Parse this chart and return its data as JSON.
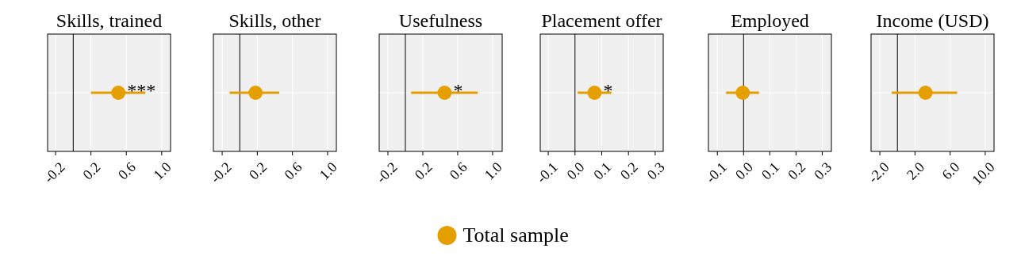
{
  "chart_data": [
    {
      "type": "scatter",
      "orientation": "horizontal",
      "title": "Skills, trained",
      "categories": [
        null
      ],
      "xlim": [
        -0.29,
        1.1
      ],
      "xticks": [
        -0.2,
        0.2,
        0.6,
        {
          "value": 1,
          "label": "1.0"
        }
      ],
      "grid": true,
      "marker": "circle",
      "legend": "bottom",
      "ref_lines": [
        {
          "axis": "x",
          "value": 0,
          "color": "#000000"
        }
      ],
      "annotations": [
        {
          "text": "***",
          "x": 0.51
        }
      ],
      "series": [
        {
          "name": "Total sample",
          "color": "#e69f00",
          "values": [
            0.51
          ],
          "errors": [
            [
              0.2,
              0.815
            ]
          ]
        }
      ]
    },
    {
      "type": "scatter",
      "orientation": "horizontal",
      "title": "Skills, other",
      "categories": [
        null
      ],
      "xlim": [
        -0.3,
        1.1
      ],
      "xticks": [
        -0.2,
        0.2,
        0.6,
        {
          "value": 1,
          "label": "1.0"
        }
      ],
      "grid": true,
      "marker": "circle",
      "ref_lines": [
        {
          "axis": "x",
          "value": 0,
          "color": "#000000"
        }
      ],
      "series": [
        {
          "color": "#e69f00",
          "values": [
            0.18
          ],
          "errors": [
            [
              -0.115,
              0.45
            ]
          ]
        }
      ]
    },
    {
      "type": "scatter",
      "orientation": "horizontal",
      "title": "Usefulness",
      "categories": [
        null
      ],
      "xlim": [
        -0.3,
        1.11
      ],
      "xticks": [
        -0.2,
        0.2,
        0.6,
        {
          "value": 1,
          "label": "1.0"
        }
      ],
      "grid": true,
      "marker": "circle",
      "ref_lines": [
        {
          "axis": "x",
          "value": 0,
          "color": "#000000"
        }
      ],
      "annotations": [
        {
          "text": "*",
          "x": 0.45
        }
      ],
      "series": [
        {
          "color": "#e69f00",
          "values": [
            0.45
          ],
          "errors": [
            [
              0.065,
              0.83
            ]
          ]
        }
      ]
    },
    {
      "type": "scatter",
      "orientation": "horizontal",
      "title": "Placement offer",
      "categories": [
        null
      ],
      "xlim": [
        -0.13,
        0.33
      ],
      "xticks": [
        -0.1,
        {
          "value": 0,
          "label": "0.0"
        },
        0.1,
        0.2,
        0.3
      ],
      "grid": true,
      "marker": "circle",
      "ref_lines": [
        {
          "axis": "x",
          "value": 0,
          "color": "#000000"
        }
      ],
      "annotations": [
        {
          "text": "*",
          "x": 0.073
        }
      ],
      "series": [
        {
          "color": "#e69f00",
          "values": [
            0.073
          ],
          "errors": [
            [
              0.01,
              0.136
            ]
          ]
        }
      ]
    },
    {
      "type": "scatter",
      "orientation": "horizontal",
      "title": "Employed",
      "categories": [
        null
      ],
      "xlim": [
        -0.134,
        0.335
      ],
      "xticks": [
        -0.1,
        {
          "value": 0,
          "label": "0.0"
        },
        0.1,
        0.2,
        0.3
      ],
      "grid": true,
      "marker": "circle",
      "ref_lines": [
        {
          "axis": "x",
          "value": 0,
          "color": "#000000"
        }
      ],
      "series": [
        {
          "color": "#e69f00",
          "values": [
            -0.003
          ],
          "errors": [
            [
              -0.067,
              0.059
            ]
          ]
        }
      ]
    },
    {
      "type": "scatter",
      "orientation": "horizontal",
      "title": "Income (USD)",
      "categories": [
        null
      ],
      "xlim": [
        -3,
        11
      ],
      "xticks": [
        {
          "value": -2,
          "label": "-2.0"
        },
        {
          "value": 2,
          "label": "2.0"
        },
        {
          "value": 6,
          "label": "6.0"
        },
        {
          "value": 10,
          "label": "10.0"
        }
      ],
      "grid": true,
      "marker": "circle",
      "ref_lines": [
        {
          "axis": "x",
          "value": 0,
          "color": "#000000"
        }
      ],
      "series": [
        {
          "color": "#e69f00",
          "values": [
            3.2
          ],
          "errors": [
            [
              -0.65,
              6.8
            ]
          ]
        }
      ]
    }
  ]
}
